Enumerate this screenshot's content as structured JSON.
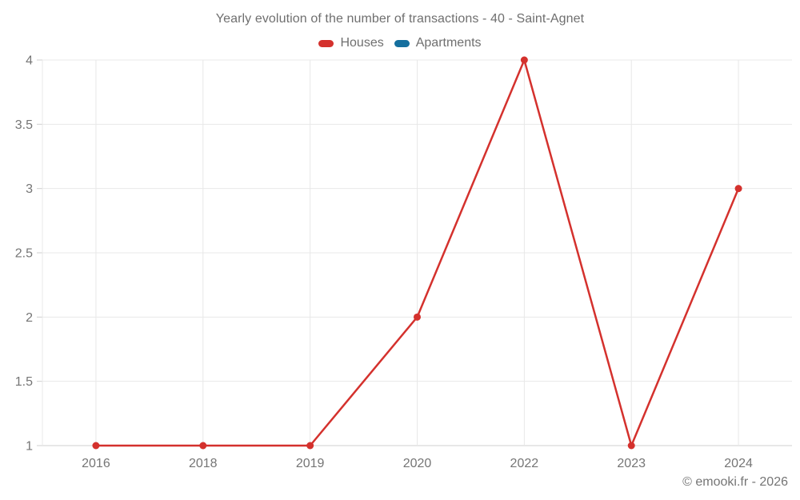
{
  "chart_data": {
    "type": "line",
    "title": "Yearly evolution of the number of transactions - 40 - Saint-Agnet",
    "categories": [
      "2016",
      "2018",
      "2019",
      "2020",
      "2022",
      "2023",
      "2024"
    ],
    "series": [
      {
        "name": "Houses",
        "color": "#d4312d",
        "values": [
          1,
          1,
          1,
          2,
          4,
          1,
          3
        ]
      },
      {
        "name": "Apartments",
        "color": "#156f9e",
        "values": []
      }
    ],
    "xlabel": "",
    "ylabel": "",
    "ylim": [
      1,
      4
    ],
    "yticks": [
      1,
      1.5,
      2,
      2.5,
      3,
      3.5,
      4
    ],
    "grid": "both",
    "legend_position": "top"
  },
  "footer": {
    "copyright": "© emooki.fr - 2026"
  }
}
